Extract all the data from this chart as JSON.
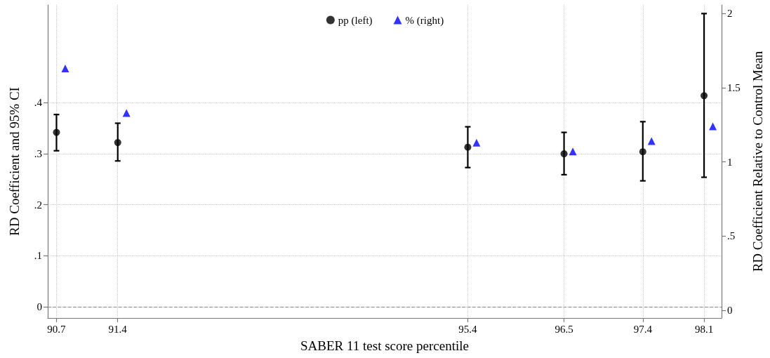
{
  "chart_data": {
    "type": "scatter",
    "xlabel": "SABER 11 test score percentile",
    "ylabel": "RD Coefficient and 95% CI",
    "y2label": "RD Coefficient Relative to Control Mean",
    "x": [
      90.7,
      91.4,
      95.4,
      96.5,
      97.4,
      98.1
    ],
    "series": [
      {
        "name": "pp (left)",
        "color": "#000000",
        "marker": "circle",
        "values": [
          0.342,
          0.322,
          0.313,
          0.3,
          0.304,
          0.414
        ],
        "errors": [
          [
            0.306,
            0.377
          ],
          [
            0.286,
            0.36
          ],
          [
            0.273,
            0.353
          ],
          [
            0.259,
            0.342
          ],
          [
            0.247,
            0.363
          ],
          [
            0.254,
            0.575
          ]
        ]
      },
      {
        "name": "% (right)",
        "color": "#0000ff",
        "marker": "triangle",
        "axis": "y2",
        "x": [
          90.8,
          91.5,
          95.5,
          96.6,
          97.5,
          98.2
        ],
        "values": [
          1.63,
          1.33,
          1.13,
          1.07,
          1.14,
          1.24
        ]
      }
    ],
    "xlim": [
      90.6,
      98.3
    ],
    "xticks": [
      90.7,
      91.4,
      95.4,
      96.5,
      97.4,
      98.1
    ],
    "ylim": [
      -0.022,
      0.592
    ],
    "yticks": [
      {
        "value": 0,
        "label": "0"
      },
      {
        "value": 0.1,
        "label": ".1"
      },
      {
        "value": 0.2,
        "label": ".2"
      },
      {
        "value": 0.3,
        "label": ".3"
      },
      {
        "value": 0.4,
        "label": ".4"
      }
    ],
    "y2lim": [
      -0.052,
      2.058
    ],
    "y2ticks": [
      {
        "value": 0,
        "label": "0"
      },
      {
        "value": 0.5,
        "label": ".5"
      },
      {
        "value": 1,
        "label": "1"
      },
      {
        "value": 1.5,
        "label": "1.5"
      },
      {
        "value": 2,
        "label": "2"
      }
    ],
    "ref_lines": [
      {
        "axis": "y",
        "value": 0,
        "color": "#888888",
        "line_style": "dashed"
      }
    ],
    "grid": true,
    "legend": "top"
  }
}
